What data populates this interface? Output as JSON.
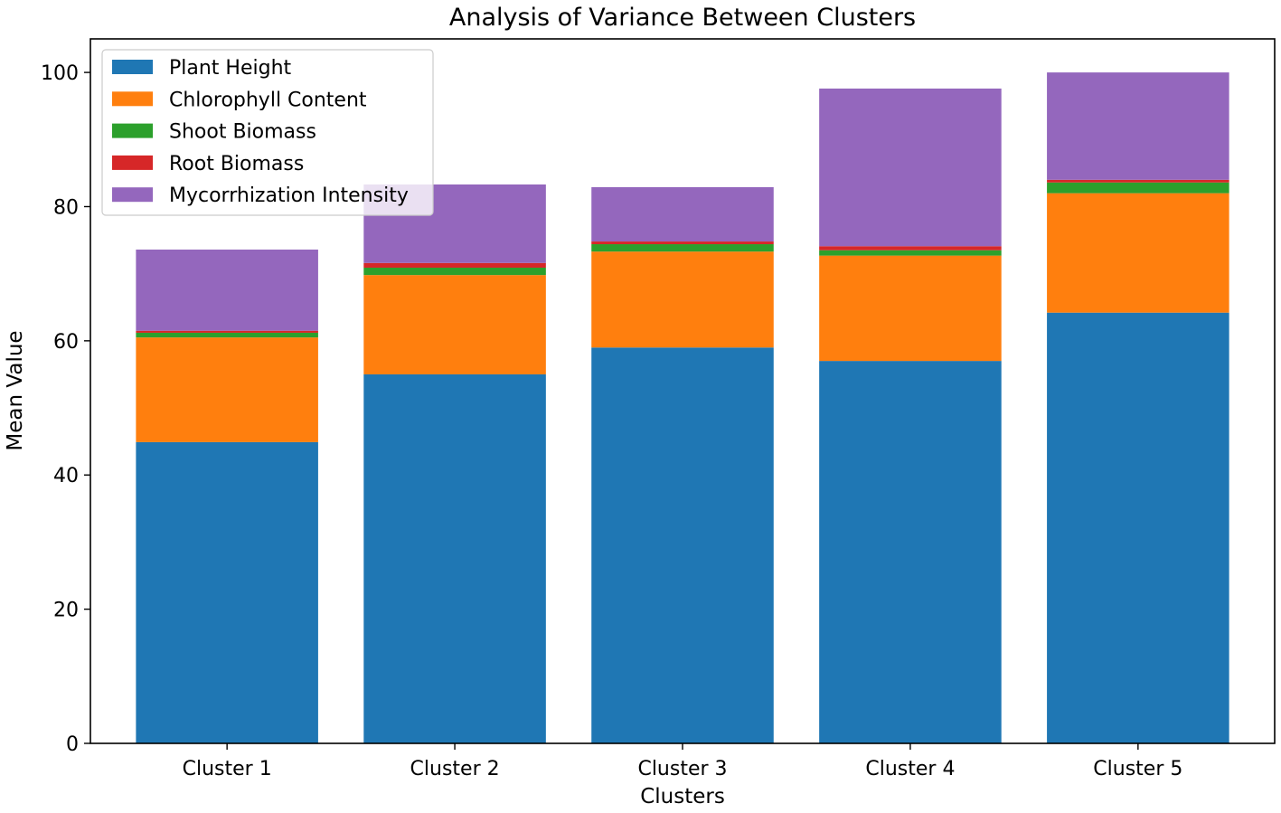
{
  "chart_data": {
    "type": "bar",
    "stacked": true,
    "title": "Analysis of Variance Between Clusters",
    "xlabel": "Clusters",
    "ylabel": "Mean Value",
    "ylim": [
      0,
      105
    ],
    "yticks": [
      0,
      20,
      40,
      60,
      80,
      100
    ],
    "categories": [
      "Cluster 1",
      "Cluster 2",
      "Cluster 3",
      "Cluster 4",
      "Cluster 5"
    ],
    "series": [
      {
        "name": "Plant Height",
        "color": "#1f77b4",
        "values": [
          44.9,
          55.0,
          59.0,
          57.0,
          64.2
        ]
      },
      {
        "name": "Chlorophyll Content",
        "color": "#ff7f0e",
        "values": [
          15.6,
          14.8,
          14.3,
          15.7,
          17.8
        ]
      },
      {
        "name": "Shoot Biomass",
        "color": "#2ca02c",
        "values": [
          0.7,
          1.1,
          1.1,
          0.8,
          1.6
        ]
      },
      {
        "name": "Root Biomass",
        "color": "#d62728",
        "values": [
          0.3,
          0.7,
          0.4,
          0.6,
          0.4
        ]
      },
      {
        "name": "Mycorrhization Intensity",
        "color": "#9467bd",
        "values": [
          12.1,
          11.7,
          8.1,
          23.5,
          16.0
        ]
      }
    ],
    "legend_position": "top-left",
    "grid": false
  }
}
